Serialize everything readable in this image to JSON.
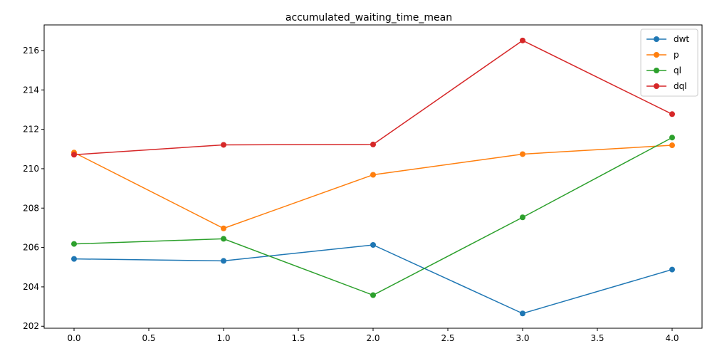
{
  "chart_data": {
    "type": "line",
    "title": "accumulated_waiting_time_mean",
    "xlabel": "",
    "ylabel": "",
    "x": [
      0,
      1,
      2,
      3,
      4
    ],
    "xlim": [
      -0.2,
      4.2
    ],
    "ylim": [
      201.9,
      217.3
    ],
    "x_ticks": [
      "0.0",
      "0.5",
      "1.0",
      "1.5",
      "2.0",
      "2.5",
      "3.0",
      "3.5",
      "4.0"
    ],
    "y_ticks": [
      "202",
      "204",
      "206",
      "208",
      "210",
      "212",
      "214",
      "216"
    ],
    "grid": false,
    "legend_position": "top-right",
    "series": [
      {
        "name": "dwt",
        "color": "#1f77b4",
        "values": [
          205.42,
          205.32,
          206.13,
          202.65,
          204.88
        ]
      },
      {
        "name": "p",
        "color": "#ff7f0e",
        "values": [
          210.82,
          206.97,
          209.69,
          210.74,
          211.19
        ]
      },
      {
        "name": "ql",
        "color": "#2ca02c",
        "values": [
          206.18,
          206.44,
          203.58,
          207.53,
          211.58
        ]
      },
      {
        "name": "dql",
        "color": "#d62728",
        "values": [
          210.71,
          211.21,
          211.23,
          216.51,
          212.77
        ]
      }
    ]
  }
}
